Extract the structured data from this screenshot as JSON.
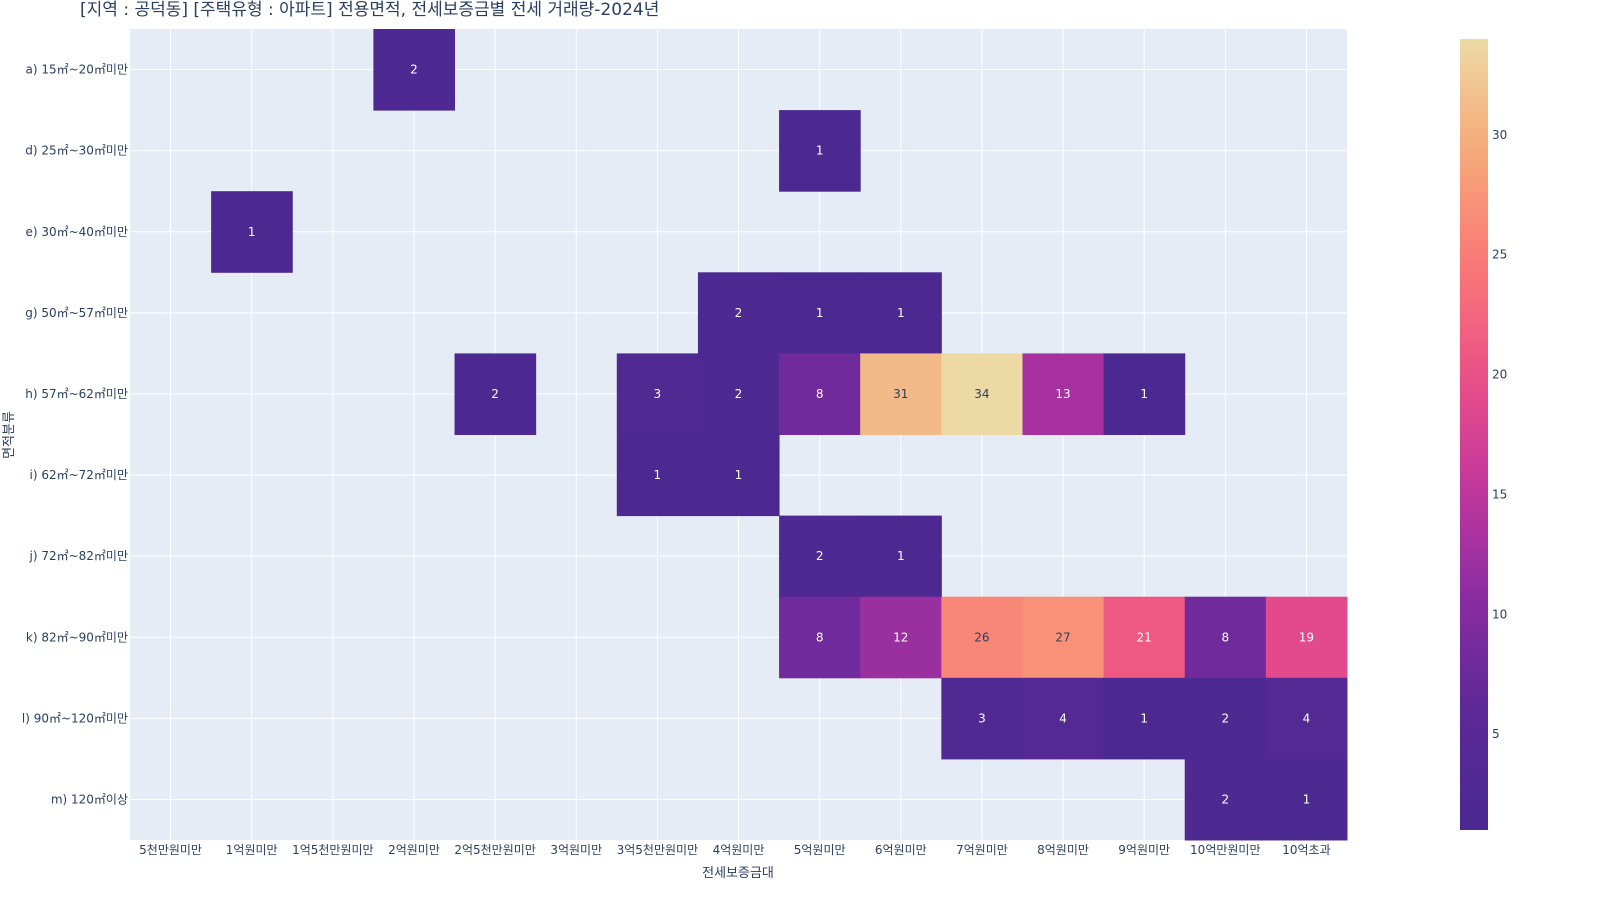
{
  "chart_data": {
    "type": "heatmap",
    "title": "[지역 : 공덕동] [주택유형 : 아파트] 전용면적, 전세보증금별 전세 거래량-2024년",
    "xlabel": "전세보증금대",
    "ylabel": "면적분류",
    "x_categories": [
      "5천만원미만",
      "1억원미만",
      "1억5천만원미만",
      "2억원미만",
      "2억5천만원미만",
      "3억원미만",
      "3억5천만원미만",
      "4억원미만",
      "5억원미만",
      "6억원미만",
      "7억원미만",
      "8억원미만",
      "9억원미만",
      "10억만원미만",
      "10억초과"
    ],
    "y_categories": [
      "a) 15㎡~20㎡미만",
      "d) 25㎡~30㎡미만",
      "e) 30㎡~40㎡미만",
      "g) 50㎡~57㎡미만",
      "h) 57㎡~62㎡미만",
      "i) 62㎡~72㎡미만",
      "j) 72㎡~82㎡미만",
      "k) 82㎡~90㎡미만",
      "l) 90㎡~120㎡미만",
      "m) 120㎡이상"
    ],
    "z": [
      [
        null,
        null,
        null,
        2,
        null,
        null,
        null,
        null,
        null,
        null,
        null,
        null,
        null,
        null,
        null
      ],
      [
        null,
        null,
        null,
        null,
        null,
        null,
        null,
        null,
        1,
        null,
        null,
        null,
        null,
        null,
        null
      ],
      [
        null,
        1,
        null,
        null,
        null,
        null,
        null,
        null,
        null,
        null,
        null,
        null,
        null,
        null,
        null
      ],
      [
        null,
        null,
        null,
        null,
        null,
        null,
        null,
        2,
        1,
        1,
        null,
        null,
        null,
        null,
        null
      ],
      [
        null,
        null,
        null,
        null,
        2,
        null,
        3,
        2,
        8,
        31,
        34,
        13,
        1,
        null,
        null
      ],
      [
        null,
        null,
        null,
        null,
        null,
        null,
        1,
        1,
        null,
        null,
        null,
        null,
        null,
        null,
        null
      ],
      [
        null,
        null,
        null,
        null,
        null,
        null,
        null,
        null,
        2,
        1,
        null,
        null,
        null,
        null,
        null
      ],
      [
        null,
        null,
        null,
        null,
        null,
        null,
        null,
        null,
        8,
        12,
        26,
        27,
        21,
        8,
        19
      ],
      [
        null,
        null,
        null,
        null,
        null,
        null,
        null,
        null,
        null,
        null,
        3,
        4,
        1,
        2,
        4
      ],
      [
        null,
        null,
        null,
        null,
        null,
        null,
        null,
        null,
        null,
        null,
        null,
        null,
        null,
        2,
        1
      ]
    ],
    "zmin": 1,
    "zmax": 34,
    "colorscale": "plasma",
    "colorbar_ticks": [
      5,
      10,
      15,
      20,
      25,
      30
    ],
    "grid": true,
    "plot_background": "#e5ecf6"
  }
}
